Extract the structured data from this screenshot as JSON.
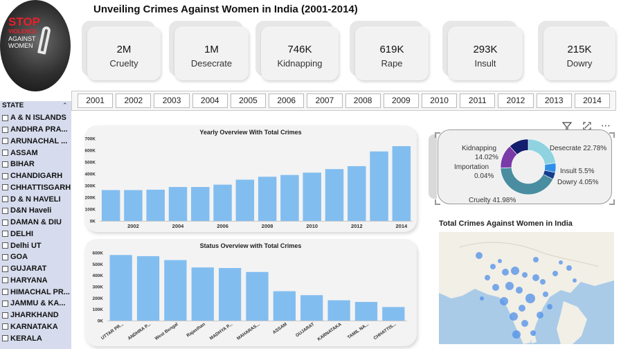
{
  "logo": {
    "line1": "STOP",
    "line2": "VIOLENCE",
    "line3": "AGAINST",
    "line4": "WOMEN"
  },
  "title": "Unveiling Crimes Against Women in India (2001-2014)",
  "kpis": [
    {
      "value": "2M",
      "label": "Cruelty"
    },
    {
      "value": "1M",
      "label": "Desecrate"
    },
    {
      "value": "746K",
      "label": "Kidnapping"
    },
    {
      "value": "619K",
      "label": "Rape"
    },
    {
      "value": "293K",
      "label": "Insult"
    },
    {
      "value": "215K",
      "label": "Dowry"
    }
  ],
  "years": [
    "2001",
    "2002",
    "2003",
    "2004",
    "2005",
    "2006",
    "2007",
    "2008",
    "2009",
    "2010",
    "2011",
    "2012",
    "2013",
    "2014"
  ],
  "sidebar": {
    "header": "STATE",
    "states": [
      "A & N ISLANDS",
      "ANDHRA PRA...",
      "ARUNACHAL ...",
      "ASSAM",
      "BIHAR",
      "CHANDIGARH",
      "CHHATTISGARH",
      "D & N HAVELI",
      "D&N Haveli",
      "DAMAN & DIU",
      "DELHI",
      "Delhi UT",
      "GOA",
      "GUJARAT",
      "HARYANA",
      "HIMACHAL PR...",
      "JAMMU & KA...",
      "JHARKHAND",
      "KARNATAKA",
      "KERALA"
    ]
  },
  "chart_data": [
    {
      "type": "bar",
      "title": "Yearly Overview With Total Crimes",
      "categories": [
        "2001",
        "2002",
        "2003",
        "2004",
        "2005",
        "2006",
        "2007",
        "2008",
        "2009",
        "2010",
        "2011",
        "2012",
        "2013",
        "2014"
      ],
      "x_tick_labels": [
        "2002",
        "2004",
        "2006",
        "2008",
        "2010",
        "2012",
        "2014"
      ],
      "values": [
        262000,
        262000,
        265000,
        288000,
        288000,
        308000,
        350000,
        375000,
        390000,
        410000,
        440000,
        465000,
        590000,
        635000
      ],
      "ylim": [
        0,
        700000
      ],
      "y_ticks": [
        "0K",
        "100K",
        "200K",
        "300K",
        "400K",
        "500K",
        "600K",
        "700K"
      ],
      "color": "#82bdf0"
    },
    {
      "type": "bar",
      "title": "Status Overview with Total Crimes",
      "categories": [
        "UTTAR PR...",
        "ANDHRA P...",
        "West Bengal",
        "Rajasthan",
        "MADHYA P...",
        "MAHARAS...",
        "ASSAM",
        "GUJARAT",
        "KARNATAKA",
        "TAMIL NA...",
        "CHHATTIS..."
      ],
      "values": [
        580000,
        570000,
        535000,
        470000,
        465000,
        430000,
        260000,
        225000,
        180000,
        165000,
        120000
      ],
      "ylim": [
        0,
        600000
      ],
      "y_ticks": [
        "0K",
        "100K",
        "200K",
        "300K",
        "400K",
        "500K",
        "600K"
      ],
      "color": "#82bdf0"
    },
    {
      "type": "pie",
      "donut": true,
      "slices": [
        {
          "name": "Desecrate",
          "pct": 22.78,
          "label": "Desecrate 22.78%",
          "color": "#8fd3e0"
        },
        {
          "name": "Insult",
          "pct": 5.5,
          "label": "Insult 5.5%",
          "color": "#2f8fe6"
        },
        {
          "name": "Dowry",
          "pct": 4.05,
          "label": "Dowry 4.05%",
          "color": "#143d8c"
        },
        {
          "name": "Cruelty",
          "pct": 41.98,
          "label": "Cruelty 41.98%",
          "color": "#4a8da1"
        },
        {
          "name": "Importation",
          "pct": 0.04,
          "label": "0.04%",
          "color": "#c0c0c0"
        },
        {
          "name": "Kidnapping",
          "pct": 14.02,
          "label": "14.02%",
          "color": "#7a3aa8"
        },
        {
          "name": "Rape",
          "pct": 11.63,
          "color": "#141e6e"
        }
      ]
    }
  ],
  "donut_labels": {
    "kidnapping_name": "Kidnapping",
    "kidnapping_pct": "14.02%",
    "importation_name": "Importation",
    "importation_pct": "0.04%",
    "desecrate": "Desecrate 22.78%",
    "insult": "Insult 5.5%",
    "dowry": "Dowry 4.05%",
    "cruelty": "Cruelty 41.98%"
  },
  "map_title": "Total Crimes Against Women in India",
  "colors": {
    "bar": "#82bdf0",
    "sidebar": "#d6dced",
    "map_water": "#aacbe8",
    "map_land": "#f1efe6",
    "bubble": "#4f8fe8"
  }
}
